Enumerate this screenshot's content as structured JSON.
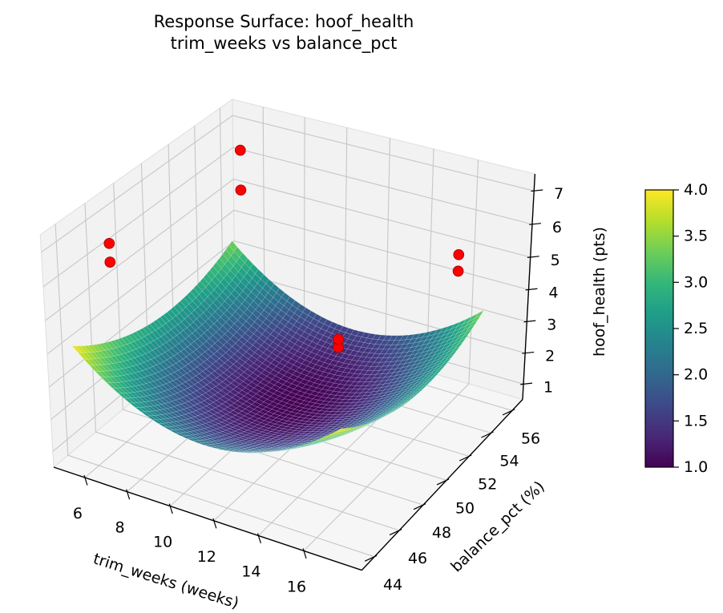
{
  "figure": {
    "title_line1": "Response Surface: hoof_health",
    "title_line2": "trim_weeks vs balance_pct"
  },
  "chart_data": {
    "type": "surface",
    "title": "Response Surface: hoof_health — trim_weeks vs balance_pct",
    "xlabel": "trim_weeks (weeks)",
    "ylabel": "balance_pct (%)",
    "zlabel": "hoof_health (pts)",
    "xlim": [
      4.5,
      18.5
    ],
    "ylim": [
      43,
      57
    ],
    "zlim": [
      0.5,
      7.5
    ],
    "xticks": [
      6,
      8,
      10,
      12,
      14,
      16
    ],
    "yticks": [
      44,
      46,
      48,
      50,
      52,
      54,
      56
    ],
    "zticks": [
      1,
      2,
      3,
      4,
      5,
      6,
      7
    ],
    "view": {
      "elev": 30,
      "azim": -60,
      "projection": "perspective"
    },
    "surface": {
      "x_range": [
        5,
        17
      ],
      "y_range": [
        44,
        56
      ],
      "z_formula": "z = 1.0 + 0.0493*(trim_weeks - 11)^2 + 0.025*(balance_pct - 51)^2",
      "coeffs": {
        "z0": 1.0,
        "ax": 0.0493,
        "x0": 11,
        "by": 0.025,
        "y0": 51
      },
      "z_min": 1.0,
      "z_max": 4.0,
      "colormap": "viridis",
      "mesh_divisions": 46
    },
    "scatter_points": [
      [
        5.7,
        45.8,
        6.6
      ],
      [
        5.7,
        45.8,
        6.05
      ],
      [
        7.3,
        53.0,
        7.5
      ],
      [
        7.3,
        53.0,
        6.3
      ],
      [
        13.0,
        51.0,
        3.4
      ],
      [
        13.0,
        51.0,
        3.15
      ],
      [
        16.5,
        54.5,
        5.5
      ],
      [
        16.5,
        54.5,
        5.0
      ]
    ],
    "colorbar": {
      "vmin": 1.0,
      "vmax": 4.0,
      "ticks": [
        1.0,
        1.5,
        2.0,
        2.5,
        3.0,
        3.5,
        4.0
      ],
      "colormap": "viridis"
    }
  },
  "colors": {
    "background": "#ffffff",
    "pane": "#f2f2f2",
    "floor": "#f6f6f6",
    "pane_edge": "#dedede",
    "grid": "#c6c6c6",
    "axis_line": "#000000",
    "text": "#000000",
    "scatter_fill": "#ff0000",
    "scatter_edge": "#aa0000",
    "mesh_line": "rgba(255,255,255,0.30)",
    "viridis": [
      "#440154",
      "#482878",
      "#3e4989",
      "#31688e",
      "#26828e",
      "#1f9e89",
      "#35b779",
      "#6ece58",
      "#b5de2b",
      "#fde725"
    ]
  }
}
